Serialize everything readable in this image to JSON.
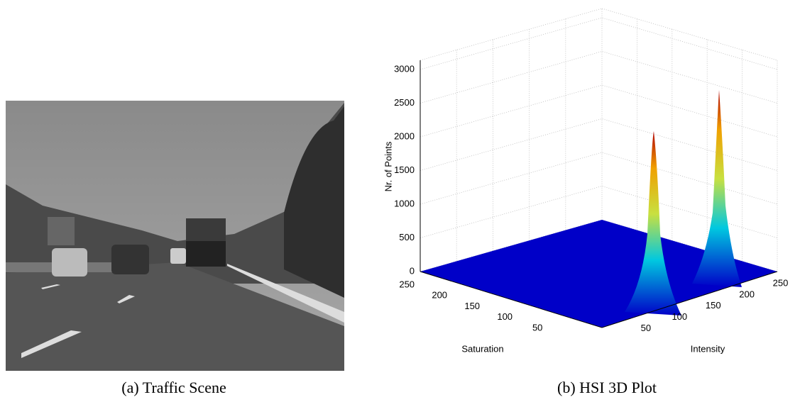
{
  "figure": {
    "subfigures": [
      {
        "caption": "(a) Traffic Scene"
      },
      {
        "caption": "(b) HSI 3D Plot",
        "z_label": "Nr. of Points",
        "x_label": "Saturation",
        "y_label": "Intensity",
        "z_ticks": [
          0,
          500,
          1000,
          1500,
          2000,
          2500,
          3000
        ],
        "saturation_ticks": [
          250,
          200,
          150,
          100,
          50
        ],
        "intensity_ticks": [
          50,
          100,
          150,
          200,
          250
        ]
      }
    ]
  }
}
